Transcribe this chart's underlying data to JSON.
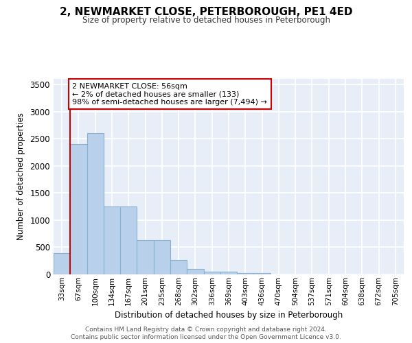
{
  "title": "2, NEWMARKET CLOSE, PETERBOROUGH, PE1 4ED",
  "subtitle": "Size of property relative to detached houses in Peterborough",
  "xlabel": "Distribution of detached houses by size in Peterborough",
  "ylabel": "Number of detached properties",
  "categories": [
    "33sqm",
    "67sqm",
    "100sqm",
    "134sqm",
    "167sqm",
    "201sqm",
    "235sqm",
    "268sqm",
    "302sqm",
    "336sqm",
    "369sqm",
    "403sqm",
    "436sqm",
    "470sqm",
    "504sqm",
    "537sqm",
    "571sqm",
    "604sqm",
    "638sqm",
    "672sqm",
    "705sqm"
  ],
  "values": [
    390,
    2400,
    2600,
    1250,
    1250,
    630,
    630,
    260,
    100,
    55,
    55,
    30,
    30,
    5,
    0,
    0,
    0,
    0,
    0,
    0,
    0
  ],
  "bar_color": "#b8d0ea",
  "bar_edge_color": "#8ab0d0",
  "highlight_color": "#cc0000",
  "annotation_text": "2 NEWMARKET CLOSE: 56sqm\n← 2% of detached houses are smaller (133)\n98% of semi-detached houses are larger (7,494) →",
  "annotation_box_color": "#ffffff",
  "annotation_box_edge": "#cc0000",
  "ylim": [
    0,
    3600
  ],
  "yticks": [
    0,
    500,
    1000,
    1500,
    2000,
    2500,
    3000,
    3500
  ],
  "background_color": "#e8eef8",
  "grid_color": "#ffffff",
  "footer_line1": "Contains HM Land Registry data © Crown copyright and database right 2024.",
  "footer_line2": "Contains public sector information licensed under the Open Government Licence v3.0."
}
